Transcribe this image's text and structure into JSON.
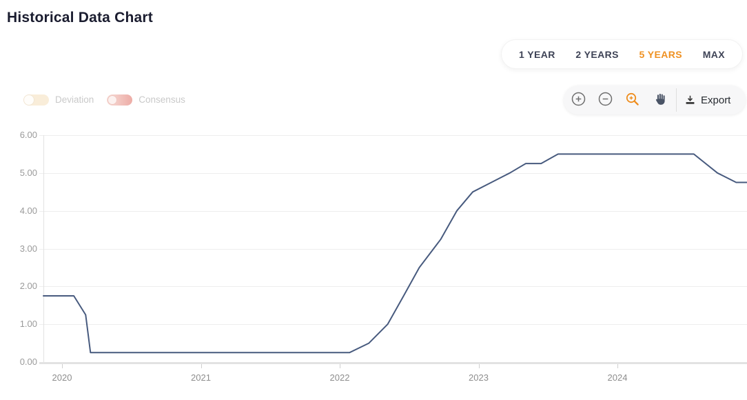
{
  "page": {
    "title": "Historical Data Chart"
  },
  "range_selector": {
    "options": [
      {
        "label": "1 YEAR",
        "active": false
      },
      {
        "label": "2 YEARS",
        "active": false
      },
      {
        "label": "5 YEARS",
        "active": true
      },
      {
        "label": "MAX",
        "active": false
      }
    ],
    "active_color": "#ef9122"
  },
  "legend_toggles": {
    "deviation": {
      "label": "Deviation",
      "enabled": false
    },
    "consensus": {
      "label": "Consensus",
      "enabled": false
    }
  },
  "toolbar": {
    "tools": [
      {
        "name": "zoom-in",
        "active": false
      },
      {
        "name": "zoom-out",
        "active": false
      },
      {
        "name": "zoom-selection",
        "active": true
      },
      {
        "name": "pan",
        "active": false
      }
    ],
    "export_label": "Export"
  },
  "colors": {
    "accent_orange": "#ef9122",
    "line": "#475a7e",
    "grid": "#ededed",
    "axis": "#e3e3e3",
    "axis_bar": "#e2e2e2",
    "tick": "#cfcfcf",
    "y_label": "#9a9a9a",
    "x_label": "#8d8d8d",
    "title": "#1a1c2f",
    "button_text": "#3e4356",
    "muted_label": "#c9c9c9"
  },
  "chart_data": {
    "type": "line",
    "title": "Historical Data Chart",
    "xlabel": "",
    "ylabel": "",
    "xlim": [
      2019.866,
      2024.933
    ],
    "ylim": [
      0,
      6
    ],
    "grid": "horizontal",
    "legend": "none",
    "x_ticks": [
      {
        "value": 2020,
        "label": "2020"
      },
      {
        "value": 2021,
        "label": "2021"
      },
      {
        "value": 2022,
        "label": "2022"
      },
      {
        "value": 2023,
        "label": "2023"
      },
      {
        "value": 2024,
        "label": "2024"
      }
    ],
    "y_ticks": [
      {
        "value": 0,
        "label": "0.00"
      },
      {
        "value": 1,
        "label": "1.00"
      },
      {
        "value": 2,
        "label": "2.00"
      },
      {
        "value": 3,
        "label": "3.00"
      },
      {
        "value": 4,
        "label": "4.00"
      },
      {
        "value": 5,
        "label": "5.00"
      },
      {
        "value": 6,
        "label": "6.00"
      }
    ],
    "series": [
      {
        "name": "main",
        "color": "#475a7e",
        "points": [
          [
            2019.866,
            1.75
          ],
          [
            2020.085,
            1.75
          ],
          [
            2020.17,
            1.25
          ],
          [
            2020.205,
            0.25
          ],
          [
            2022.07,
            0.25
          ],
          [
            2022.21,
            0.5
          ],
          [
            2022.345,
            1.0
          ],
          [
            2022.46,
            1.75
          ],
          [
            2022.573,
            2.5
          ],
          [
            2022.728,
            3.25
          ],
          [
            2022.843,
            4.0
          ],
          [
            2022.958,
            4.5
          ],
          [
            2023.092,
            4.75
          ],
          [
            2023.225,
            5.0
          ],
          [
            2023.34,
            5.25
          ],
          [
            2023.45,
            5.25
          ],
          [
            2023.572,
            5.5
          ],
          [
            2024.55,
            5.5
          ],
          [
            2024.72,
            5.0
          ],
          [
            2024.855,
            4.75
          ],
          [
            2024.933,
            4.75
          ]
        ]
      }
    ]
  }
}
